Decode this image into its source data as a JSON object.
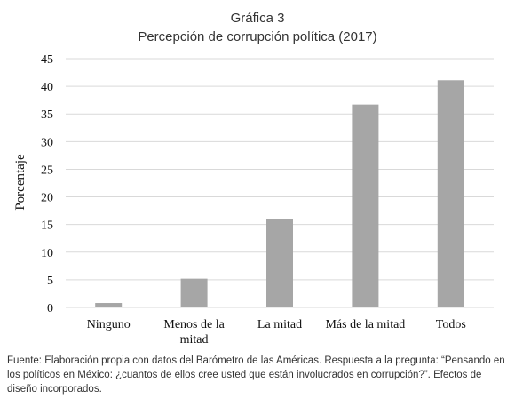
{
  "header": {
    "title": "Gráfica 3",
    "subtitle": "Percepción de corrupción política (2017)"
  },
  "chart_data": {
    "type": "bar",
    "title": "Gráfica 3",
    "subtitle": "Percepción de corrupción política (2017)",
    "categories": [
      "Ninguno",
      "Menos de la mitad",
      "La mitad",
      "Más de la mitad",
      "Todos"
    ],
    "category_lines": [
      [
        "Ninguno"
      ],
      [
        "Menos de la",
        "mitad"
      ],
      [
        "La mitad"
      ],
      [
        "Más de la mitad"
      ],
      [
        "Todos"
      ]
    ],
    "values": [
      0.8,
      5.2,
      16.0,
      36.7,
      41.1
    ],
    "xlabel": "",
    "ylabel": "Porcentaje",
    "ylim": [
      0,
      45
    ],
    "yticks": [
      0,
      5,
      10,
      15,
      20,
      25,
      30,
      35,
      40,
      45
    ],
    "grid": true,
    "bar_color": "#a6a6a6",
    "grid_color": "#d9d9d9"
  },
  "caption": "Fuente: Elaboración propia con datos del Barómetro de las Américas. Respuesta a la pregunta: “Pensando en los políticos en México: ¿cuantos de ellos cree usted que están involucrados en corrupción?”. Efectos de diseño incorporados."
}
